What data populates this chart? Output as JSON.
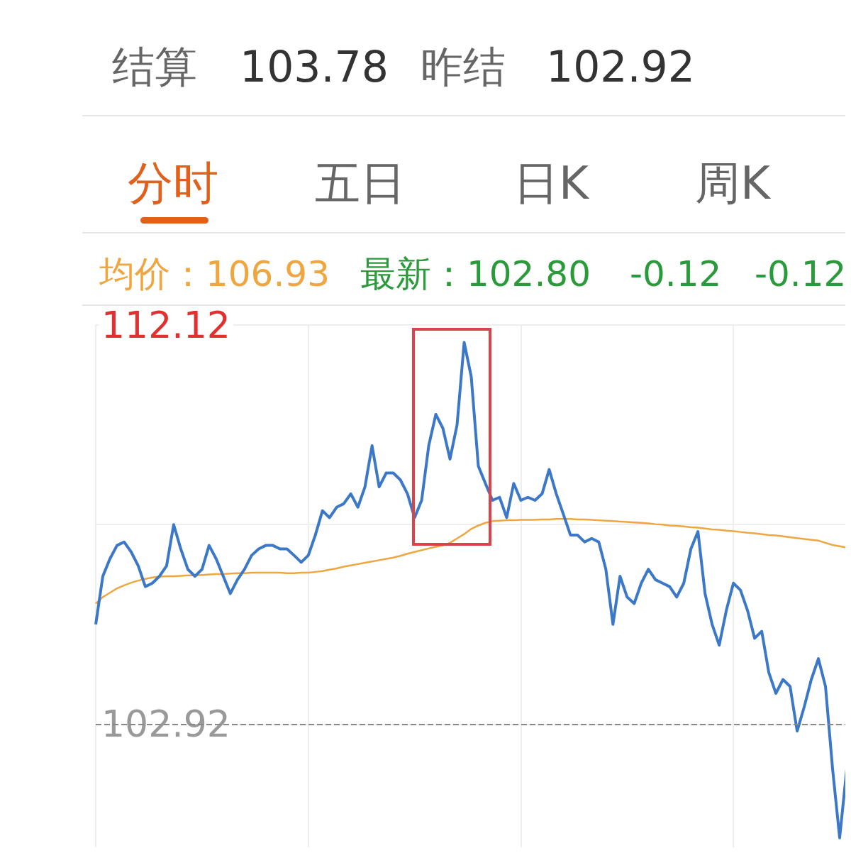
{
  "chart_data": {
    "type": "line",
    "annotations": [
      "结算",
      "103.78",
      "昨结",
      "102.92",
      "分时",
      "五日",
      "日K",
      "周K",
      "均价：106.93",
      "最新：102.80",
      "-0.12",
      "-0.12"
    ],
    "categories": [
      null,
      null,
      null,
      null,
      null,
      null,
      null,
      null,
      null,
      null,
      null,
      null,
      null,
      null,
      null,
      null,
      null,
      null,
      null,
      null,
      null,
      null,
      null,
      null,
      null,
      null,
      null,
      null,
      null,
      null,
      null,
      null,
      null,
      null,
      null,
      null,
      null,
      null,
      null,
      null,
      null,
      null,
      null,
      null,
      null,
      null,
      null,
      null,
      null,
      null,
      null,
      null,
      null,
      null,
      null,
      null,
      null,
      null,
      null,
      null,
      null,
      null,
      null,
      null,
      null,
      null,
      null,
      null,
      null,
      null,
      null,
      null,
      null,
      null,
      null,
      null,
      null,
      null,
      null,
      null,
      null,
      null,
      null,
      null,
      null,
      null,
      null,
      null,
      null,
      null,
      null,
      null,
      null,
      null,
      null,
      null,
      null,
      null,
      null,
      null,
      null,
      null,
      null,
      null,
      null,
      null,
      null
    ],
    "series": [
      {
        "color": "#3b78c8",
        "values": [
          105.22,
          106.33,
          106.73,
          107.04,
          107.12,
          106.89,
          106.57,
          106.09,
          106.17,
          106.33,
          106.57,
          107.52,
          106.96,
          106.49,
          106.33,
          106.49,
          107.04,
          106.73,
          106.33,
          105.93,
          106.25,
          106.49,
          106.81,
          106.96,
          107.04,
          107.04,
          106.96,
          106.96,
          106.81,
          106.65,
          106.81,
          107.28,
          107.84,
          107.68,
          107.92,
          108.0,
          108.23,
          107.92,
          108.39,
          109.34,
          108.39,
          108.71,
          108.71,
          108.55,
          108.23,
          107.68,
          108.08,
          109.34,
          110.06,
          109.74,
          109.03,
          109.82,
          111.72,
          110.93,
          108.87,
          108.47,
          108.08,
          108.15,
          107.68,
          108.47,
          108.08,
          108.15,
          108.08,
          108.23,
          108.79,
          108.23,
          107.76,
          107.28,
          107.28,
          107.12,
          107.2,
          107.12,
          106.49,
          105.22,
          106.33,
          105.85,
          105.7,
          106.17,
          106.49,
          106.25,
          106.17,
          106.09,
          105.85,
          106.17,
          106.96,
          107.36,
          105.93,
          105.22,
          104.74,
          105.54,
          106.17,
          106.01,
          105.54,
          104.9,
          105.06,
          104.11,
          103.63,
          103.95,
          103.79,
          102.76,
          103.32,
          103.95,
          104.43,
          103.79,
          101.89,
          100.3,
          101.89
        ]
      },
      {
        "color": "#f0a640",
        "values": [
          105.7,
          105.85,
          105.95,
          106.05,
          106.12,
          106.18,
          106.23,
          106.27,
          106.3,
          106.32,
          106.33,
          106.33,
          106.34,
          106.35,
          106.35,
          106.36,
          106.37,
          106.38,
          106.38,
          106.39,
          106.4,
          106.4,
          106.41,
          106.41,
          106.41,
          106.41,
          106.41,
          106.4,
          106.4,
          106.41,
          106.41,
          106.43,
          106.45,
          106.48,
          106.51,
          106.55,
          106.58,
          106.61,
          106.64,
          106.67,
          106.7,
          106.73,
          106.76,
          106.8,
          106.85,
          106.89,
          106.93,
          106.97,
          107.01,
          107.04,
          107.1,
          107.2,
          107.3,
          107.42,
          107.5,
          107.56,
          107.6,
          107.61,
          107.62,
          107.62,
          107.63,
          107.63,
          107.63,
          107.64,
          107.64,
          107.65,
          107.65,
          107.65,
          107.64,
          107.64,
          107.63,
          107.62,
          107.61,
          107.6,
          107.59,
          107.58,
          107.57,
          107.56,
          107.55,
          107.53,
          107.52,
          107.5,
          107.49,
          107.48,
          107.46,
          107.45,
          107.43,
          107.41,
          107.4,
          107.38,
          107.37,
          107.35,
          107.33,
          107.32,
          107.3,
          107.28,
          107.27,
          107.25,
          107.23,
          107.21,
          107.19,
          107.17,
          107.15,
          107.1,
          107.05,
          107.02,
          106.99
        ]
      }
    ],
    "ylim": [
      100,
      112.12
    ],
    "yticks": [
      102.92,
      {
        "value": 107.52,
        "label": null
      },
      112.12
    ],
    "ref_lines": [
      {
        "axis": "y",
        "value": 102.92,
        "color": "#888888",
        "line_style": "dashed"
      }
    ],
    "grid": true,
    "marker": "none",
    "line_style": "solid"
  }
}
